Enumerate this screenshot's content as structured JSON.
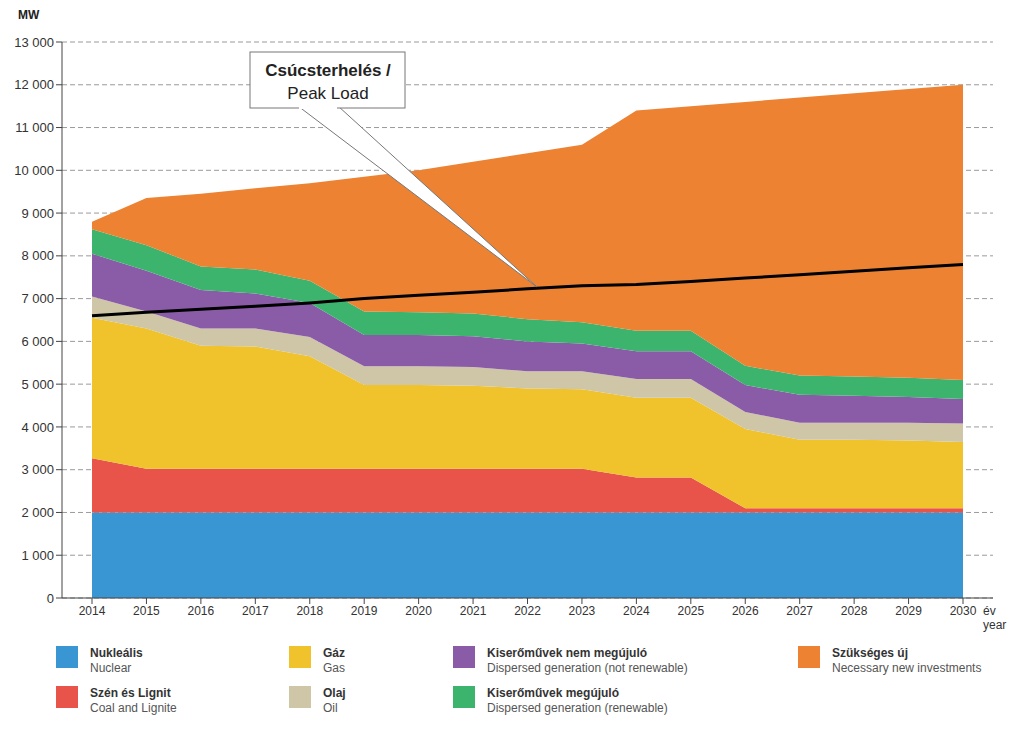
{
  "chart_data": {
    "type": "area",
    "stacked": true,
    "grid": true,
    "ylabel": "MW",
    "xlabel": [
      "év",
      "year"
    ],
    "categories": [
      "2014",
      "2015",
      "2016",
      "2017",
      "2018",
      "2019",
      "2020",
      "2021",
      "2022",
      "2023",
      "2024",
      "2025",
      "2026",
      "2027",
      "2028",
      "2029",
      "2030"
    ],
    "ylim": [
      0,
      13000
    ],
    "yticks": [
      0,
      {
        "value": 1000,
        "label": "1 000"
      },
      {
        "value": 2000,
        "label": "2 000"
      },
      {
        "value": 3000,
        "label": "3 000"
      },
      {
        "value": 4000,
        "label": "4 000"
      },
      {
        "value": 5000,
        "label": "5 000"
      },
      {
        "value": 6000,
        "label": "6 000"
      },
      {
        "value": 7000,
        "label": "7 000"
      },
      {
        "value": 8000,
        "label": "8 000"
      },
      {
        "value": 9000,
        "label": "9 000"
      },
      {
        "value": 10000,
        "label": "10 000"
      },
      {
        "value": 11000,
        "label": "11 000"
      },
      {
        "value": 12000,
        "label": "12 000"
      },
      {
        "value": 13000,
        "label": "13 000"
      }
    ],
    "series": [
      {
        "name": [
          "Nukleális",
          "Nuclear"
        ],
        "color": "#3a96d2",
        "values": [
          2000,
          2000,
          2000,
          2000,
          2000,
          2000,
          2000,
          2000,
          2000,
          2000,
          2000,
          2000,
          2000,
          2000,
          2000,
          2000,
          2000
        ]
      },
      {
        "name": [
          "Szén és Lignit",
          "Coal and Lignite"
        ],
        "color": "#e8534a",
        "values": [
          1270,
          1020,
          1020,
          1020,
          1020,
          1020,
          1020,
          1020,
          1020,
          1020,
          820,
          820,
          100,
          100,
          100,
          100,
          100
        ]
      },
      {
        "name": [
          "Gáz",
          "Gas"
        ],
        "color": "#f0c22c",
        "values": [
          3280,
          3280,
          2880,
          2860,
          2630,
          1960,
          1960,
          1940,
          1880,
          1860,
          1860,
          1860,
          1850,
          1600,
          1600,
          1580,
          1550
        ]
      },
      {
        "name": [
          "Olaj",
          "Oil"
        ],
        "color": "#cfc6a8",
        "values": [
          500,
          400,
          400,
          420,
          450,
          440,
          440,
          440,
          400,
          420,
          440,
          440,
          400,
          400,
          400,
          420,
          430
        ]
      },
      {
        "name": [
          "Kiserőművek nem megújuló",
          "Dispersed generation (not renewable)"
        ],
        "color": "#8a5ca8",
        "values": [
          1000,
          950,
          900,
          820,
          800,
          730,
          730,
          720,
          700,
          650,
          650,
          650,
          630,
          650,
          630,
          600,
          570
        ]
      },
      {
        "name": [
          "Kiserőművek megújuló",
          "Dispersed generation (renewable)"
        ],
        "color": "#3cb46e",
        "values": [
          570,
          600,
          550,
          560,
          520,
          550,
          530,
          530,
          520,
          500,
          480,
          480,
          450,
          450,
          450,
          450,
          450
        ]
      },
      {
        "name": [
          "Szükséges új",
          "Necessary new investments"
        ],
        "color": "#ec8232",
        "values": [
          180,
          1100,
          1700,
          1900,
          2280,
          3150,
          3320,
          3550,
          3880,
          4150,
          5150,
          5250,
          6170,
          6500,
          6620,
          6750,
          6900
        ]
      },
      {
        "name": [
          "Csúcsterhelés /",
          "Peak Load"
        ],
        "type": "line",
        "color": "#000000",
        "marker": "none",
        "line_style": "solid",
        "values": [
          6600,
          6680,
          6750,
          6820,
          6900,
          7000,
          7080,
          7150,
          7230,
          7300,
          7330,
          7400,
          7480,
          7560,
          7640,
          7720,
          7800
        ]
      }
    ]
  }
}
